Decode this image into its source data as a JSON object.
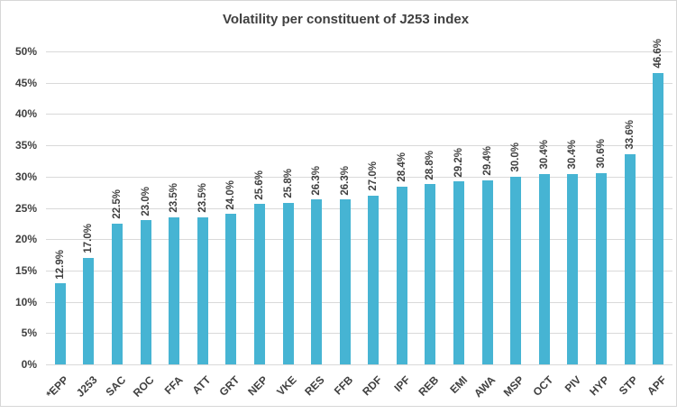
{
  "chart_data": {
    "type": "bar",
    "title": "Volatility per constituent of J253 index",
    "categories": [
      "*EPP",
      "J253",
      "SAC",
      "ROC",
      "FFA",
      "ATT",
      "GRT",
      "NEP",
      "VKE",
      "RES",
      "FFB",
      "RDF",
      "IPF",
      "REB",
      "EMI",
      "AWA",
      "MSP",
      "OCT",
      "PIV",
      "HYP",
      "STP",
      "APF"
    ],
    "values": [
      12.9,
      17.0,
      22.5,
      23.0,
      23.5,
      23.5,
      24.0,
      25.6,
      25.8,
      26.3,
      26.3,
      27.0,
      28.4,
      28.8,
      29.2,
      29.4,
      30.0,
      30.4,
      30.4,
      30.6,
      33.6,
      46.6
    ],
    "value_labels": [
      "12.9%",
      "17.0%",
      "22.5%",
      "23.0%",
      "23.5%",
      "23.5%",
      "24.0%",
      "25.6%",
      "25.8%",
      "26.3%",
      "26.3%",
      "27.0%",
      "28.4%",
      "28.8%",
      "29.2%",
      "29.4%",
      "30.0%",
      "30.4%",
      "30.4%",
      "30.6%",
      "33.6%",
      "46.6%"
    ],
    "xlabel": "",
    "ylabel": "",
    "ylim": [
      0,
      50
    ],
    "ytick_step": 5,
    "yticks": [
      "0%",
      "5%",
      "10%",
      "15%",
      "20%",
      "25%",
      "30%",
      "35%",
      "40%",
      "45%",
      "50%"
    ],
    "grid": true,
    "legend": "none",
    "colors": {
      "bar": "#46b4d3",
      "gridline": "#d9d9d9",
      "text": "#404040",
      "frame_border": "#d7d7d7",
      "background": "#ffffff"
    }
  }
}
